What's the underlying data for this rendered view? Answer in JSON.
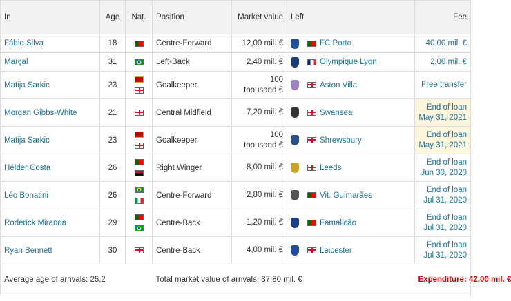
{
  "headers": {
    "in": "In",
    "age": "Age",
    "nat": "Nat.",
    "position": "Position",
    "market_value": "Market value",
    "left": "Left",
    "fee": "Fee"
  },
  "rows": [
    {
      "name": "Fábio Silva",
      "age": "18",
      "nat": [
        "pt"
      ],
      "position": "Centre-Forward",
      "value": "12,00 mil. €",
      "club": "FC Porto",
      "club_flag": "pt",
      "crest_color": "#1f4fa0",
      "fee": "40,00 mil. €",
      "loan_highlight": false
    },
    {
      "name": "Marçal",
      "age": "31",
      "nat": [
        "br"
      ],
      "position": "Left-Back",
      "value": "2,40 mil. €",
      "club": "Olympique Lyon",
      "club_flag": "fr",
      "crest_color": "#1a3a7a",
      "fee": "2,00 mil. €",
      "loan_highlight": false
    },
    {
      "name": "Matija Sarkic",
      "age": "23",
      "nat": [
        "me",
        "en"
      ],
      "position": "Goalkeeper",
      "value": "100 thousand €",
      "club": "Aston Villa",
      "club_flag": "en",
      "crest_color": "#9c82c0",
      "fee": "Free transfer",
      "loan_highlight": false
    },
    {
      "name": "Morgan Gibbs-White",
      "age": "21",
      "nat": [
        "en"
      ],
      "position": "Central Midfield",
      "value": "7,20 mil. €",
      "club": "Swansea",
      "club_flag": "en",
      "crest_color": "#333333",
      "fee": "End of loan May 31, 2021",
      "loan_highlight": true
    },
    {
      "name": "Matija Sarkic",
      "age": "23",
      "nat": [
        "me",
        "en"
      ],
      "position": "Goalkeeper",
      "value": "100 thousand €",
      "club": "Shrewsbury",
      "club_flag": "en",
      "crest_color": "#2a4f8a",
      "fee": "End of loan May 31, 2021",
      "loan_highlight": true
    },
    {
      "name": "Hélder Costa",
      "age": "26",
      "nat": [
        "pt",
        "ao"
      ],
      "position": "Right Winger",
      "value": "8,00 mil. €",
      "club": "Leeds",
      "club_flag": "en",
      "crest_color": "#c9a227",
      "fee": "End of loan Jun 30, 2020",
      "loan_highlight": false
    },
    {
      "name": "Léo Bonatini",
      "age": "26",
      "nat": [
        "br",
        "it"
      ],
      "position": "Centre-Forward",
      "value": "2,80 mil. €",
      "club": "Vit. Guimarães",
      "club_flag": "pt",
      "crest_color": "#555555",
      "fee": "End of loan Jul 31, 2020",
      "loan_highlight": false
    },
    {
      "name": "Roderick Miranda",
      "age": "29",
      "nat": [
        "pt",
        "br"
      ],
      "position": "Centre-Back",
      "value": "1,20 mil. €",
      "club": "Famalicão",
      "club_flag": "pt",
      "crest_color": "#1d3f8a",
      "fee": "End of loan Jul 31, 2020",
      "loan_highlight": false
    },
    {
      "name": "Ryan Bennett",
      "age": "30",
      "nat": [
        "en"
      ],
      "position": "Centre-Back",
      "value": "4,00 mil. €",
      "club": "Leicester",
      "club_flag": "en",
      "crest_color": "#1e4ca0",
      "fee": "End of loan Jul 31, 2020",
      "loan_highlight": false
    }
  ],
  "footer": {
    "avg_age": "Average age of arrivals: 25,2",
    "total_value": "Total market value of arrivals: 37,80 mil. €",
    "expenditure": "Expenditure: 42,00 mil. €"
  },
  "colors": {
    "link": "#1d75a3",
    "expenditure": "#cc0000",
    "loan_highlight": "#fdf5dc"
  }
}
